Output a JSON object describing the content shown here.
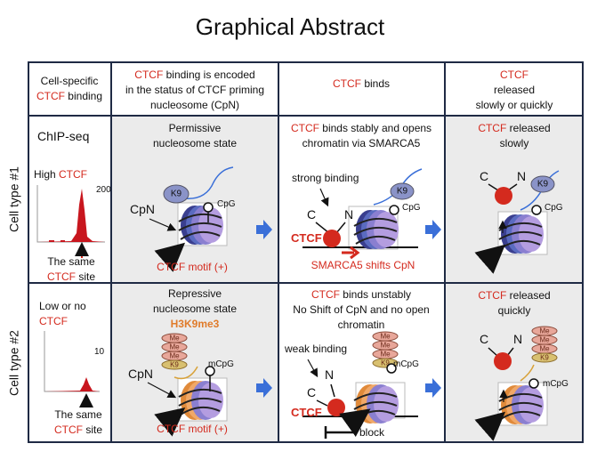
{
  "title": "Graphical Abstract",
  "row_labels": [
    "Cell type #1",
    "Cell type #2"
  ],
  "header": [
    [
      [
        "Cell-specific"
      ],
      [
        {
          "text": "CTCF",
          "color": "#d42a1e"
        },
        " binding"
      ]
    ],
    [
      [
        {
          "text": "CTCF",
          "color": "#d42a1e"
        },
        " binding is encoded"
      ],
      [
        "in the status of CTCF priming"
      ],
      [
        "nucleosome (CpN)"
      ]
    ],
    [
      [
        {
          "text": "CTCF",
          "color": "#d42a1e"
        },
        " binds"
      ]
    ],
    [
      [
        {
          "text": "CTCF",
          "color": "#d42a1e"
        }
      ],
      [
        "released"
      ],
      [
        "slowly or quickly"
      ]
    ]
  ],
  "row1": {
    "chip": {
      "method": "ChIP-seq",
      "level": [
        [
          "High ",
          {
            "text": "CTCF",
            "color": "#d42a1e"
          }
        ]
      ],
      "ymax": "200",
      "site": [
        [
          "The same"
        ],
        [
          {
            "text": "CTCF",
            "color": "#d42a1e"
          },
          " site"
        ]
      ]
    },
    "state": {
      "caption": [
        [
          "Permissive"
        ],
        [
          "nucleosome state"
        ]
      ],
      "k9": "K9",
      "cpg": "CpG",
      "cpn": "CpN",
      "motif": "CTCF motif (+)"
    },
    "binds": {
      "caption": [
        [
          {
            "text": "CTCF",
            "color": "#d42a1e"
          },
          " binds stably and opens"
        ],
        [
          "chromatin via SMARCA5"
        ]
      ],
      "binding": "strong binding",
      "c": "C",
      "n": "N",
      "ctcf": "CTCF",
      "k9": "K9",
      "cpg": "CpG",
      "shift": "SMARCA5 shifts CpN"
    },
    "released": {
      "caption": [
        [
          {
            "text": "CTCF",
            "color": "#d42a1e"
          },
          " released"
        ],
        [
          "slowly"
        ]
      ],
      "c": "C",
      "n": "N",
      "k9": "K9",
      "cpg": "CpG"
    }
  },
  "row2": {
    "chip": {
      "level": [
        [
          "Low or no"
        ],
        [
          {
            "text": "CTCF",
            "color": "#d42a1e"
          }
        ]
      ],
      "ymax": "10",
      "site": [
        [
          "The same"
        ],
        [
          {
            "text": "CTCF",
            "color": "#d42a1e"
          },
          " site"
        ]
      ]
    },
    "state": {
      "caption": [
        [
          "Repressive"
        ],
        [
          "nucleosome state"
        ],
        [
          {
            "text": "H3K9me3",
            "color": "#e07b2a"
          }
        ]
      ],
      "me": [
        "Me",
        "Me",
        "Me"
      ],
      "k9": "K9",
      "mcpg": "mCpG",
      "cpn": "CpN",
      "motif": "CTCF motif (+)"
    },
    "binds": {
      "caption": [
        [
          {
            "text": "CTCF",
            "color": "#d42a1e"
          },
          " binds unstably"
        ],
        [
          "No Shift of CpN and no open"
        ],
        [
          "chromatin"
        ]
      ],
      "binding": "weak binding",
      "me": [
        "Me",
        "Me",
        "Me"
      ],
      "k9": "K9",
      "mcpg": "mCpG",
      "c": "C",
      "n": "N",
      "ctcf": "CTCF",
      "block": "block"
    },
    "released": {
      "caption": [
        [
          {
            "text": "CTCF",
            "color": "#d42a1e"
          },
          " released"
        ],
        [
          "quickly"
        ]
      ],
      "c": "C",
      "n": "N",
      "me": [
        "Me",
        "Me",
        "Me"
      ],
      "k9": "K9",
      "mcpg": "mCpG"
    }
  }
}
